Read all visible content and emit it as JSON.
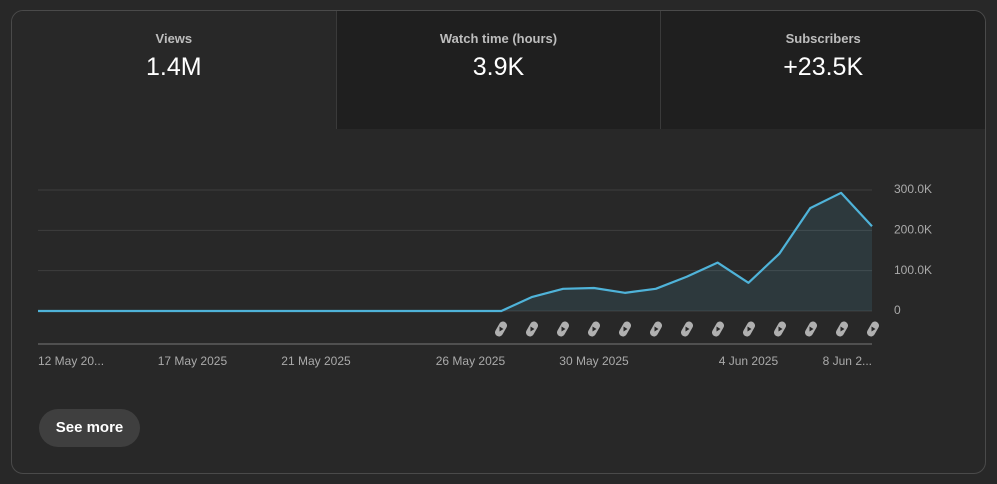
{
  "tabs": [
    {
      "label": "Views",
      "value": "1.4M"
    },
    {
      "label": "Watch time (hours)",
      "value": "3.9K"
    },
    {
      "label": "Subscribers",
      "value": "+23.5K"
    }
  ],
  "chart_data": {
    "type": "line",
    "categories": [
      "12 May 20...",
      null,
      null,
      null,
      null,
      "17 May 2025",
      null,
      null,
      null,
      "21 May 2025",
      null,
      null,
      null,
      null,
      "26 May 2025",
      null,
      null,
      null,
      "30 May 2025",
      null,
      null,
      null,
      null,
      "4 Jun 2025",
      null,
      null,
      null,
      "8 Jun 2..."
    ],
    "series": [
      {
        "name": "Views",
        "color": "#4fb3d9",
        "values": [
          0,
          0,
          0,
          0,
          0,
          0,
          0,
          0,
          0,
          0,
          0,
          0,
          0,
          0,
          0,
          0,
          35000,
          55000,
          57000,
          45000,
          55000,
          85000,
          120000,
          70000,
          142000,
          255000,
          293000,
          210000
        ]
      }
    ],
    "ylim": [
      0,
      300000
    ],
    "yticks": [
      0,
      {
        "value": 100000,
        "label": "100.0K"
      },
      {
        "value": 200000,
        "label": "200.0K"
      },
      {
        "value": 300000,
        "label": "300.0K"
      }
    ],
    "grid": true
  },
  "button": "See more"
}
